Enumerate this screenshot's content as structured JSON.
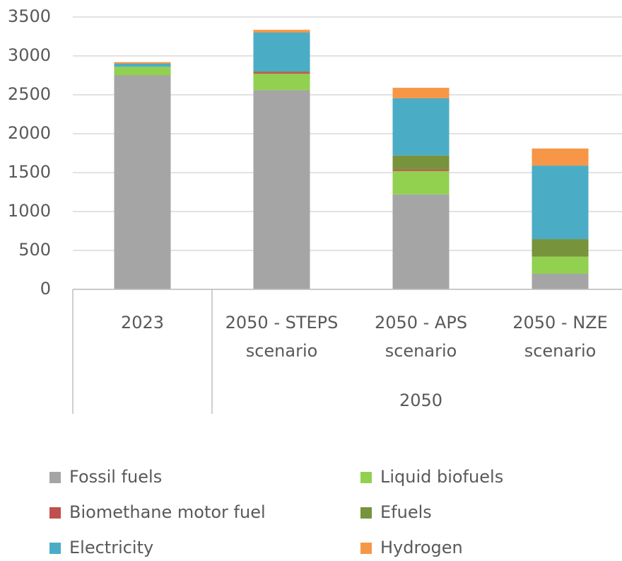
{
  "chart_data": {
    "type": "stacked_bar",
    "categories": [
      "2023",
      "2050 - STEPS scenario",
      "2050 - APS scenario",
      "2050 - NZE scenario"
    ],
    "category_groups": [
      {
        "name": "2050",
        "start": 1,
        "end": 3
      }
    ],
    "series": [
      {
        "name": "Fossil fuels",
        "color": "#a5a5a5",
        "values": [
          2750,
          2560,
          1220,
          200
        ]
      },
      {
        "name": "Liquid biofuels",
        "color": "#92d050",
        "values": [
          110,
          210,
          300,
          220
        ]
      },
      {
        "name": "Biomethane motor fuel",
        "color": "#c0504d",
        "values": [
          0,
          20,
          20,
          0
        ]
      },
      {
        "name": "Efuels",
        "color": "#77933c",
        "values": [
          0,
          10,
          180,
          225
        ]
      },
      {
        "name": "Electricity",
        "color": "#4bacc6",
        "values": [
          40,
          500,
          735,
          945
        ]
      },
      {
        "name": "Hydrogen",
        "color": "#f79646",
        "values": [
          20,
          35,
          135,
          220
        ]
      }
    ],
    "ylim": [
      0,
      3500
    ],
    "yticks": [
      0,
      500,
      1000,
      1500,
      2000,
      2500,
      3000,
      3500
    ],
    "grid": true
  }
}
